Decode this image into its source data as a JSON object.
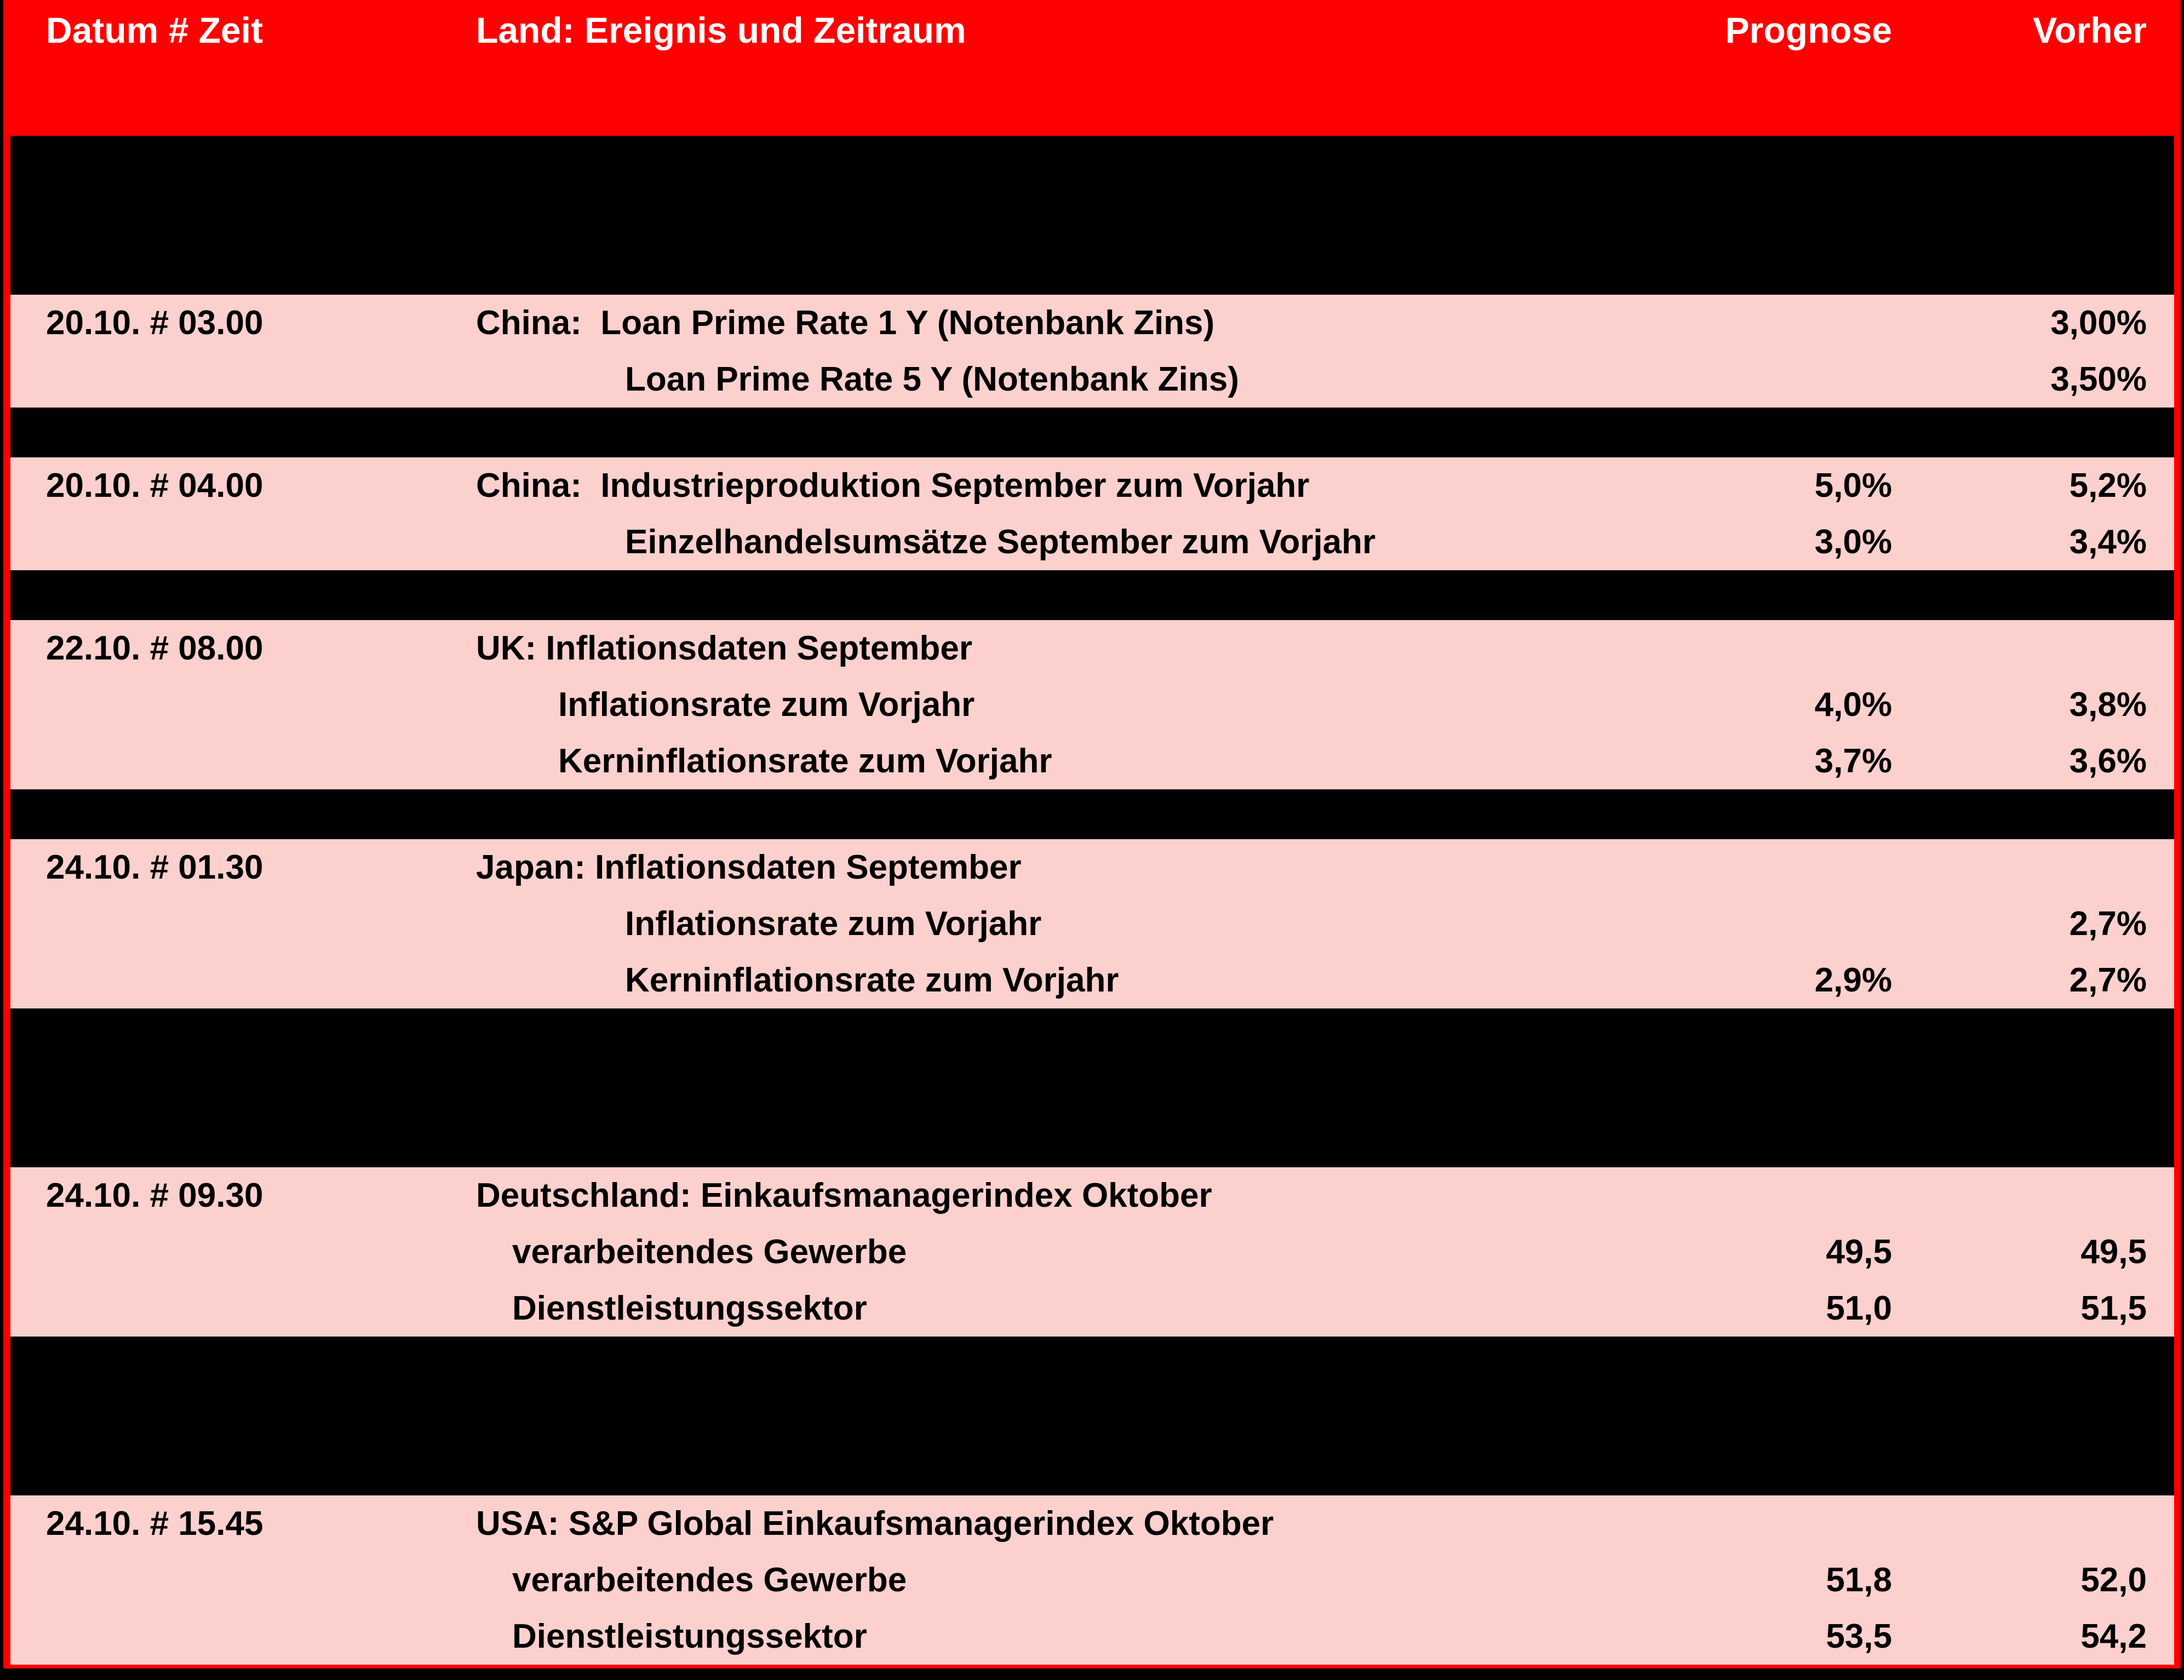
{
  "colors": {
    "accent_red": "#fe0000",
    "row_pink": "#fcd0cd",
    "background_black": "#000000",
    "header_text": "#ffffff",
    "row_text": "#000000"
  },
  "header": {
    "col_datum": "Datum # Zeit",
    "col_ereignis": "Land: Ereignis und Zeitraum",
    "col_prognose": "Prognose",
    "col_vorher": "Vorher"
  },
  "rows": [
    {
      "type": "gap",
      "size": "tall"
    },
    {
      "type": "event",
      "datum": "20.10. # 03.00",
      "lines": [
        {
          "text": "China:  Loan Prime Rate 1 Y (Notenbank Zins)",
          "indent": 0,
          "prognose": "",
          "vorher": "3,00%"
        },
        {
          "text": "Loan Prime Rate 5 Y (Notenbank Zins)",
          "indent": 3,
          "prognose": "",
          "vorher": "3,50%"
        }
      ]
    },
    {
      "type": "gap",
      "size": "thin"
    },
    {
      "type": "event",
      "datum": "20.10. # 04.00",
      "lines": [
        {
          "text": "China:  Industrieproduktion September zum Vorjahr",
          "indent": 0,
          "prognose": "5,0%",
          "vorher": "5,2%"
        },
        {
          "text": "Einzelhandelsumsätze September zum Vorjahr",
          "indent": 3,
          "prognose": "3,0%",
          "vorher": "3,4%"
        }
      ]
    },
    {
      "type": "gap",
      "size": "thin"
    },
    {
      "type": "event",
      "datum": "22.10. # 08.00",
      "lines": [
        {
          "text": "UK: Inflationsdaten September",
          "indent": 0,
          "prognose": "",
          "vorher": ""
        },
        {
          "text": "Inflationsrate zum Vorjahr",
          "indent": 2,
          "prognose": "4,0%",
          "vorher": "3,8%"
        },
        {
          "text": "Kerninflationsrate zum Vorjahr",
          "indent": 2,
          "prognose": "3,7%",
          "vorher": "3,6%"
        }
      ]
    },
    {
      "type": "gap",
      "size": "thin"
    },
    {
      "type": "event",
      "datum": "24.10. # 01.30",
      "lines": [
        {
          "text": "Japan: Inflationsdaten September",
          "indent": 0,
          "prognose": "",
          "vorher": ""
        },
        {
          "text": "Inflationsrate zum Vorjahr",
          "indent": 3,
          "prognose": "",
          "vorher": "2,7%"
        },
        {
          "text": "Kerninflationsrate zum Vorjahr",
          "indent": 3,
          "prognose": "2,9%",
          "vorher": "2,7%"
        }
      ]
    },
    {
      "type": "gap",
      "size": "tall"
    },
    {
      "type": "event",
      "datum": "24.10. # 09.30",
      "lines": [
        {
          "text": "Deutschland: Einkaufsmanagerindex Oktober",
          "indent": 0,
          "prognose": "",
          "vorher": ""
        },
        {
          "text": "verarbeitendes Gewerbe",
          "indent": 1,
          "prognose": "49,5",
          "vorher": "49,5"
        },
        {
          "text": "Dienstleistungssektor",
          "indent": 1,
          "prognose": "51,0",
          "vorher": "51,5"
        }
      ]
    },
    {
      "type": "gap",
      "size": "tall"
    },
    {
      "type": "event",
      "datum": "24.10. # 15.45",
      "lines": [
        {
          "text": "USA: S&P Global Einkaufsmanagerindex Oktober",
          "indent": 0,
          "prognose": "",
          "vorher": ""
        },
        {
          "text": "verarbeitendes Gewerbe",
          "indent": 1,
          "prognose": "51,8",
          "vorher": "52,0"
        },
        {
          "text": "Dienstleistungssektor",
          "indent": 1,
          "prognose": "53,5",
          "vorher": "54,2"
        }
      ]
    }
  ]
}
